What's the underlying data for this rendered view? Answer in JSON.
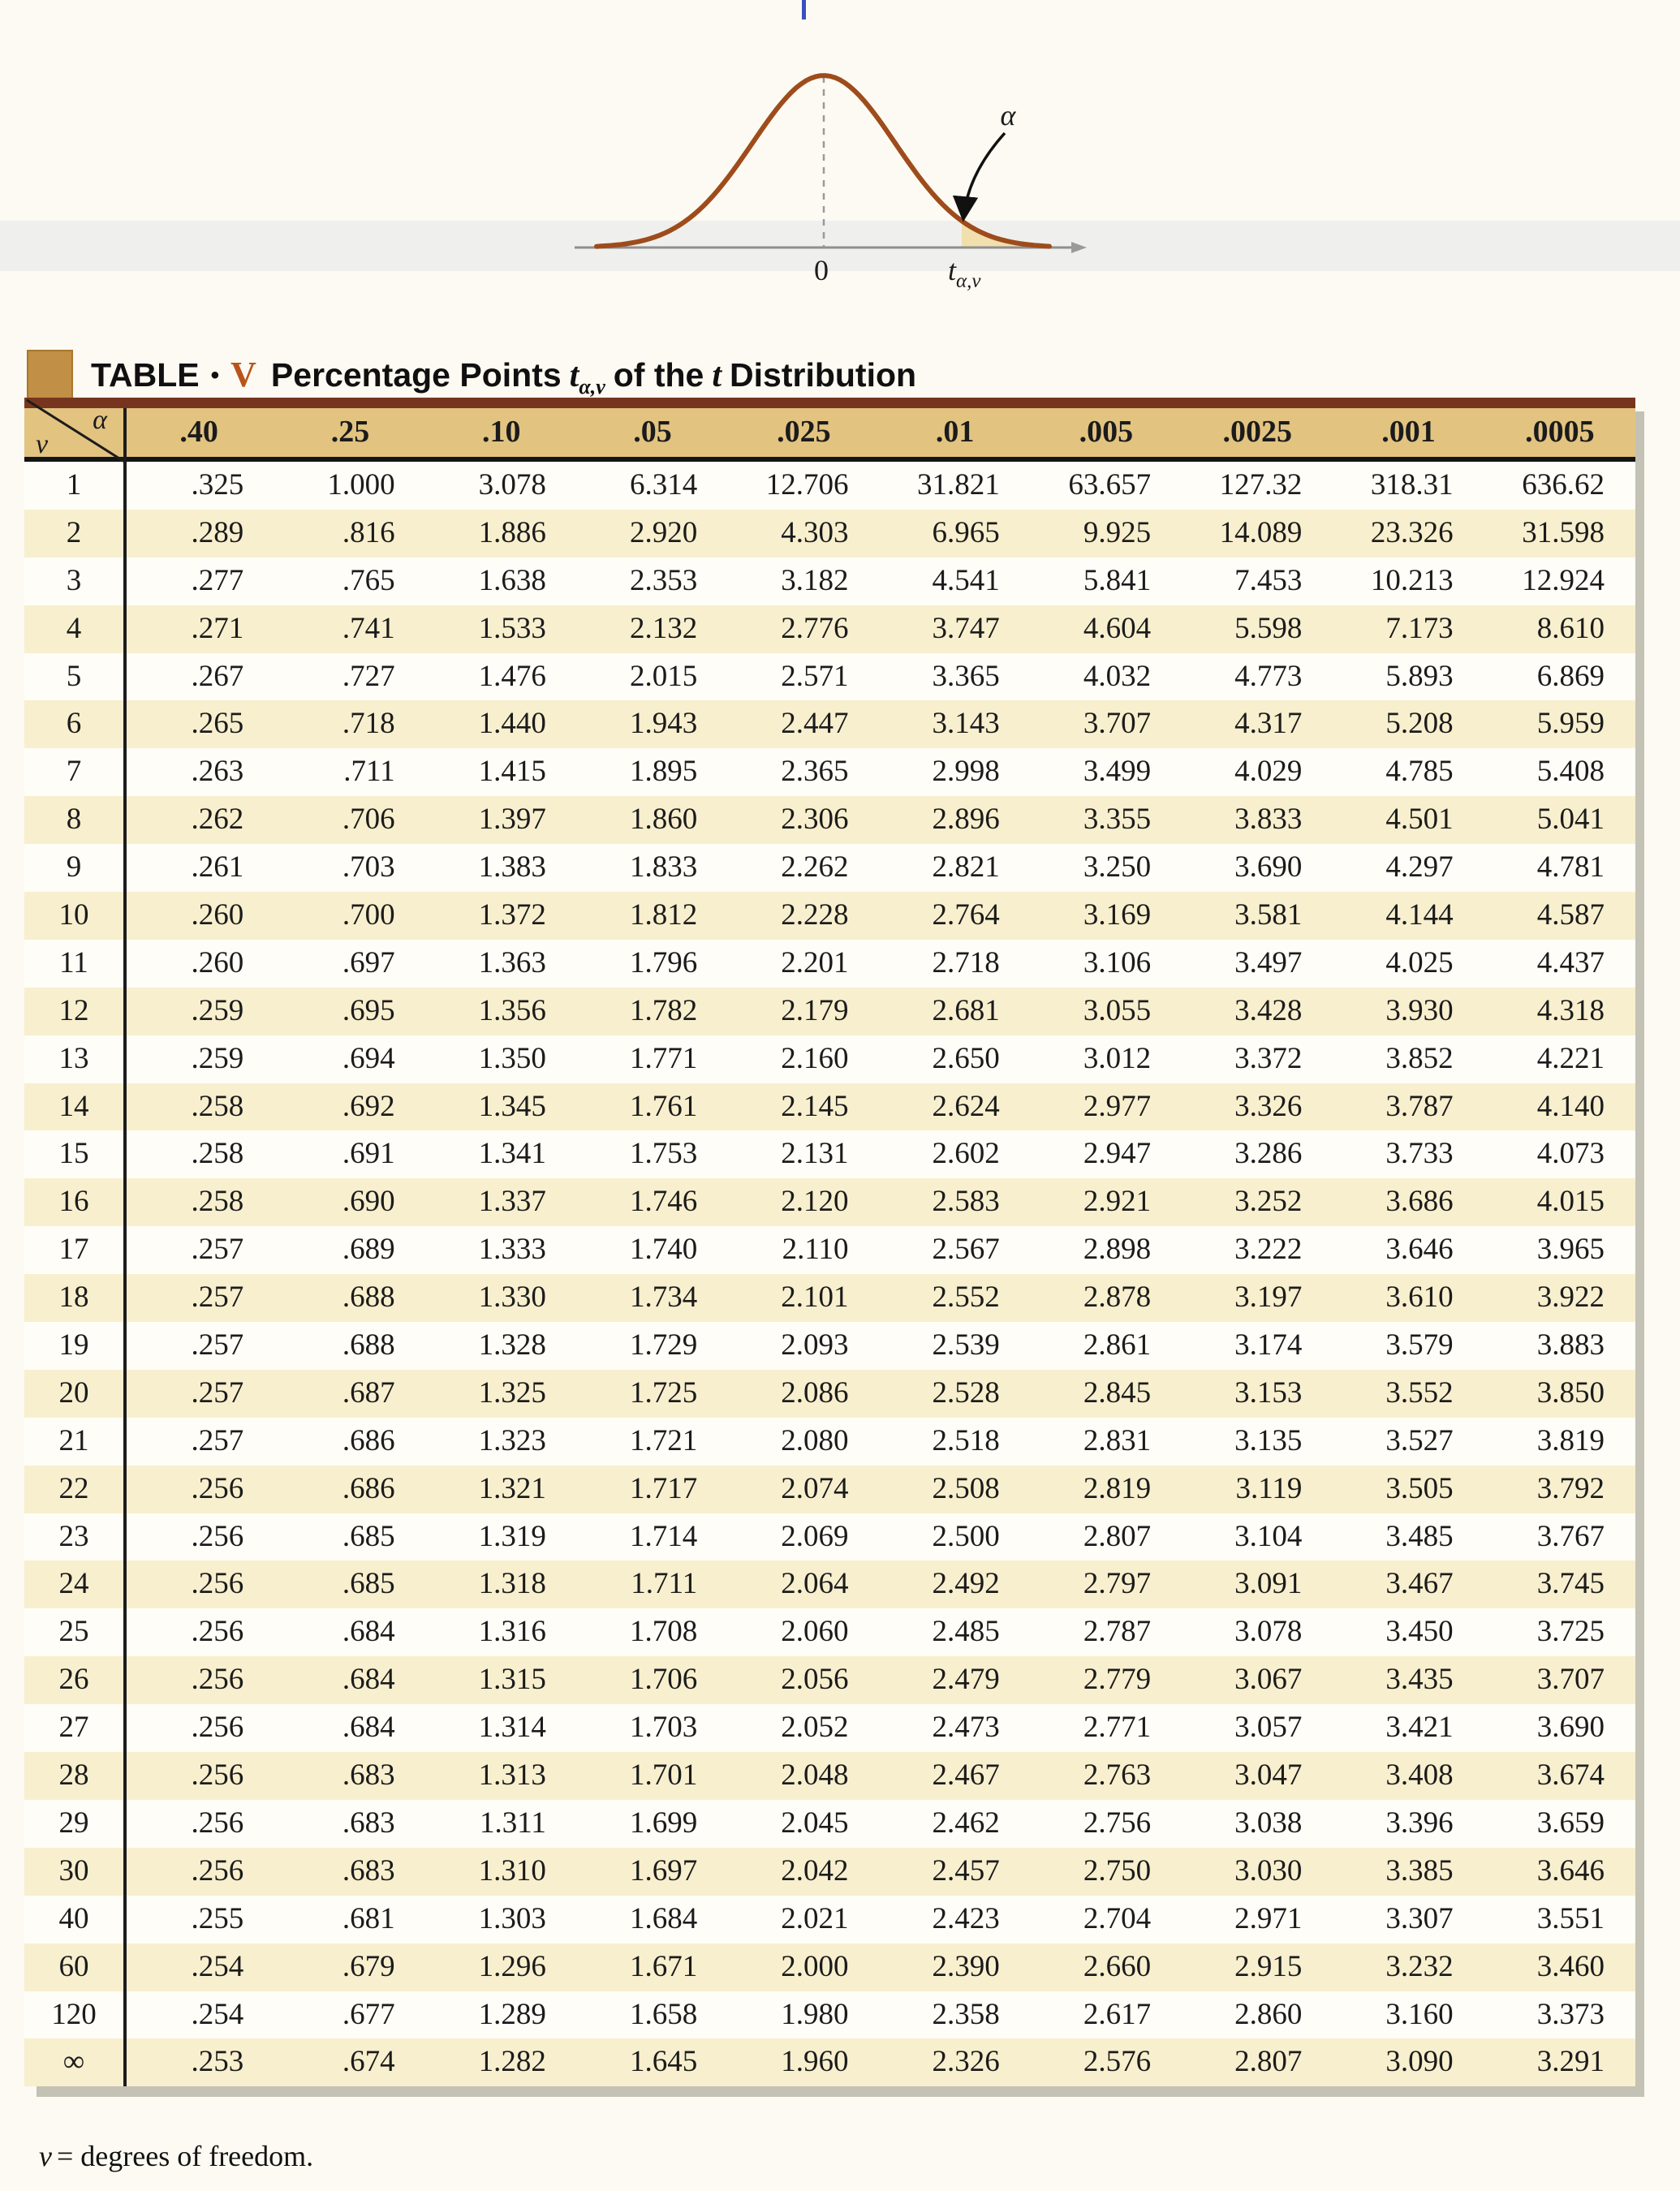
{
  "curve": {
    "axis_origin_label": "0",
    "x_label_t": "t",
    "x_label_sub": "α,ν",
    "alpha_label": "α"
  },
  "title": {
    "prefix": "TABLE",
    "bullet": "•",
    "number": "V",
    "text_1": "Percentage Points",
    "t_symbol": "t",
    "subscript": "α,v",
    "text_2": "of the",
    "t_symbol_2": "t",
    "text_3": "Distribution"
  },
  "table": {
    "corner_top_label": "α",
    "corner_bottom_label": "ν",
    "columns": [
      ".40",
      ".25",
      ".10",
      ".05",
      ".025",
      ".01",
      ".005",
      ".0025",
      ".001",
      ".0005"
    ],
    "rows": [
      {
        "v": "1",
        "values": [
          ".325",
          "1.000",
          "3.078",
          "6.314",
          "12.706",
          "31.821",
          "63.657",
          "127.32",
          "318.31",
          "636.62"
        ]
      },
      {
        "v": "2",
        "values": [
          ".289",
          ".816",
          "1.886",
          "2.920",
          "4.303",
          "6.965",
          "9.925",
          "14.089",
          "23.326",
          "31.598"
        ]
      },
      {
        "v": "3",
        "values": [
          ".277",
          ".765",
          "1.638",
          "2.353",
          "3.182",
          "4.541",
          "5.841",
          "7.453",
          "10.213",
          "12.924"
        ]
      },
      {
        "v": "4",
        "values": [
          ".271",
          ".741",
          "1.533",
          "2.132",
          "2.776",
          "3.747",
          "4.604",
          "5.598",
          "7.173",
          "8.610"
        ]
      },
      {
        "v": "5",
        "values": [
          ".267",
          ".727",
          "1.476",
          "2.015",
          "2.571",
          "3.365",
          "4.032",
          "4.773",
          "5.893",
          "6.869"
        ]
      },
      {
        "v": "6",
        "values": [
          ".265",
          ".718",
          "1.440",
          "1.943",
          "2.447",
          "3.143",
          "3.707",
          "4.317",
          "5.208",
          "5.959"
        ]
      },
      {
        "v": "7",
        "values": [
          ".263",
          ".711",
          "1.415",
          "1.895",
          "2.365",
          "2.998",
          "3.499",
          "4.029",
          "4.785",
          "5.408"
        ]
      },
      {
        "v": "8",
        "values": [
          ".262",
          ".706",
          "1.397",
          "1.860",
          "2.306",
          "2.896",
          "3.355",
          "3.833",
          "4.501",
          "5.041"
        ]
      },
      {
        "v": "9",
        "values": [
          ".261",
          ".703",
          "1.383",
          "1.833",
          "2.262",
          "2.821",
          "3.250",
          "3.690",
          "4.297",
          "4.781"
        ]
      },
      {
        "v": "10",
        "values": [
          ".260",
          ".700",
          "1.372",
          "1.812",
          "2.228",
          "2.764",
          "3.169",
          "3.581",
          "4.144",
          "4.587"
        ]
      },
      {
        "v": "11",
        "values": [
          ".260",
          ".697",
          "1.363",
          "1.796",
          "2.201",
          "2.718",
          "3.106",
          "3.497",
          "4.025",
          "4.437"
        ]
      },
      {
        "v": "12",
        "values": [
          ".259",
          ".695",
          "1.356",
          "1.782",
          "2.179",
          "2.681",
          "3.055",
          "3.428",
          "3.930",
          "4.318"
        ]
      },
      {
        "v": "13",
        "values": [
          ".259",
          ".694",
          "1.350",
          "1.771",
          "2.160",
          "2.650",
          "3.012",
          "3.372",
          "3.852",
          "4.221"
        ]
      },
      {
        "v": "14",
        "values": [
          ".258",
          ".692",
          "1.345",
          "1.761",
          "2.145",
          "2.624",
          "2.977",
          "3.326",
          "3.787",
          "4.140"
        ]
      },
      {
        "v": "15",
        "values": [
          ".258",
          ".691",
          "1.341",
          "1.753",
          "2.131",
          "2.602",
          "2.947",
          "3.286",
          "3.733",
          "4.073"
        ]
      },
      {
        "v": "16",
        "values": [
          ".258",
          ".690",
          "1.337",
          "1.746",
          "2.120",
          "2.583",
          "2.921",
          "3.252",
          "3.686",
          "4.015"
        ]
      },
      {
        "v": "17",
        "values": [
          ".257",
          ".689",
          "1.333",
          "1.740",
          "2.110",
          "2.567",
          "2.898",
          "3.222",
          "3.646",
          "3.965"
        ]
      },
      {
        "v": "18",
        "values": [
          ".257",
          ".688",
          "1.330",
          "1.734",
          "2.101",
          "2.552",
          "2.878",
          "3.197",
          "3.610",
          "3.922"
        ]
      },
      {
        "v": "19",
        "values": [
          ".257",
          ".688",
          "1.328",
          "1.729",
          "2.093",
          "2.539",
          "2.861",
          "3.174",
          "3.579",
          "3.883"
        ]
      },
      {
        "v": "20",
        "values": [
          ".257",
          ".687",
          "1.325",
          "1.725",
          "2.086",
          "2.528",
          "2.845",
          "3.153",
          "3.552",
          "3.850"
        ]
      },
      {
        "v": "21",
        "values": [
          ".257",
          ".686",
          "1.323",
          "1.721",
          "2.080",
          "2.518",
          "2.831",
          "3.135",
          "3.527",
          "3.819"
        ]
      },
      {
        "v": "22",
        "values": [
          ".256",
          ".686",
          "1.321",
          "1.717",
          "2.074",
          "2.508",
          "2.819",
          "3.119",
          "3.505",
          "3.792"
        ]
      },
      {
        "v": "23",
        "values": [
          ".256",
          ".685",
          "1.319",
          "1.714",
          "2.069",
          "2.500",
          "2.807",
          "3.104",
          "3.485",
          "3.767"
        ]
      },
      {
        "v": "24",
        "values": [
          ".256",
          ".685",
          "1.318",
          "1.711",
          "2.064",
          "2.492",
          "2.797",
          "3.091",
          "3.467",
          "3.745"
        ]
      },
      {
        "v": "25",
        "values": [
          ".256",
          ".684",
          "1.316",
          "1.708",
          "2.060",
          "2.485",
          "2.787",
          "3.078",
          "3.450",
          "3.725"
        ]
      },
      {
        "v": "26",
        "values": [
          ".256",
          ".684",
          "1.315",
          "1.706",
          "2.056",
          "2.479",
          "2.779",
          "3.067",
          "3.435",
          "3.707"
        ]
      },
      {
        "v": "27",
        "values": [
          ".256",
          ".684",
          "1.314",
          "1.703",
          "2.052",
          "2.473",
          "2.771",
          "3.057",
          "3.421",
          "3.690"
        ]
      },
      {
        "v": "28",
        "values": [
          ".256",
          ".683",
          "1.313",
          "1.701",
          "2.048",
          "2.467",
          "2.763",
          "3.047",
          "3.408",
          "3.674"
        ]
      },
      {
        "v": "29",
        "values": [
          ".256",
          ".683",
          "1.311",
          "1.699",
          "2.045",
          "2.462",
          "2.756",
          "3.038",
          "3.396",
          "3.659"
        ]
      },
      {
        "v": "30",
        "values": [
          ".256",
          ".683",
          "1.310",
          "1.697",
          "2.042",
          "2.457",
          "2.750",
          "3.030",
          "3.385",
          "3.646"
        ]
      },
      {
        "v": "40",
        "values": [
          ".255",
          ".681",
          "1.303",
          "1.684",
          "2.021",
          "2.423",
          "2.704",
          "2.971",
          "3.307",
          "3.551"
        ]
      },
      {
        "v": "60",
        "values": [
          ".254",
          ".679",
          "1.296",
          "1.671",
          "2.000",
          "2.390",
          "2.660",
          "2.915",
          "3.232",
          "3.460"
        ]
      },
      {
        "v": "120",
        "values": [
          ".254",
          ".677",
          "1.289",
          "1.658",
          "1.980",
          "2.358",
          "2.617",
          "2.860",
          "3.160",
          "3.373"
        ]
      },
      {
        "v": "∞",
        "values": [
          ".253",
          ".674",
          "1.282",
          "1.645",
          "1.960",
          "2.326",
          "2.576",
          "2.807",
          "3.090",
          "3.291"
        ]
      }
    ]
  },
  "footnote": {
    "symbol": "ν",
    "text": "= degrees of freedom."
  },
  "colors": {
    "header_bg": "#e2c380",
    "stripe_bg": "#f8efce",
    "row_bg": "#fefdf8",
    "top_border": "#77351f",
    "rule": "#141414",
    "square": "#c18f45",
    "accent": "#b8541a",
    "curve_stroke": "#9e4c1c",
    "tail_fill": "#f1dfae",
    "shadow": "#c4c1b5",
    "page_bg": "#fcfaf2",
    "text": "#1b1b1b"
  }
}
